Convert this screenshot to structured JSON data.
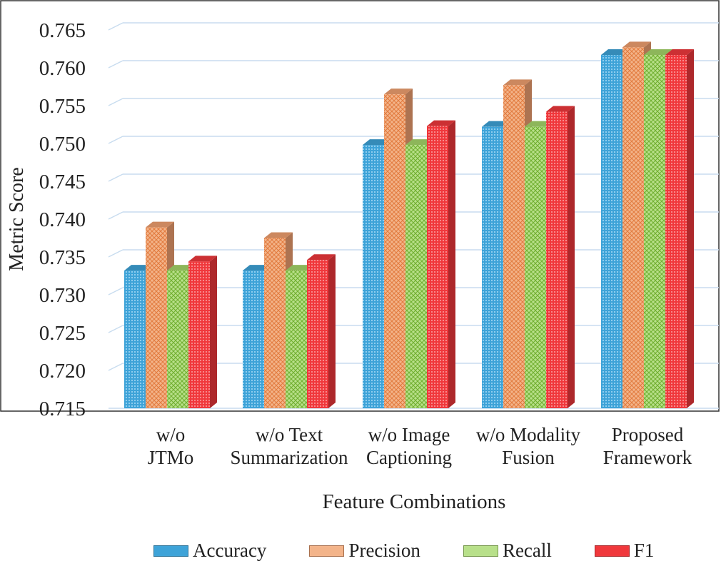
{
  "chart_data": {
    "type": "bar",
    "title": "",
    "xlabel": "Feature Combinations",
    "ylabel": "Metric Score",
    "ylim": [
      0.715,
      0.765
    ],
    "yticks": [
      "0.715",
      "0.720",
      "0.725",
      "0.730",
      "0.735",
      "0.740",
      "0.745",
      "0.750",
      "0.755",
      "0.760",
      "0.765"
    ],
    "grid": true,
    "legend_position": "bottom",
    "categories": [
      [
        "w/o",
        "JTMo"
      ],
      [
        "w/o Text",
        "Summarization"
      ],
      [
        "w/o Image",
        "Captioning"
      ],
      [
        "w/o Modality",
        "Fusion"
      ],
      [
        "Proposed",
        "Framework"
      ]
    ],
    "series": [
      {
        "name": "Accuracy",
        "color": "#3ea3d8",
        "values": [
          0.7332,
          0.7332,
          0.7498,
          0.7522,
          0.7617
        ]
      },
      {
        "name": "Precision",
        "color": "#f0a070",
        "values": [
          0.7389,
          0.7375,
          0.7565,
          0.7577,
          0.7627
        ]
      },
      {
        "name": "Recall",
        "color": "#a6d66a",
        "values": [
          0.7332,
          0.7332,
          0.7498,
          0.7522,
          0.7617
        ]
      },
      {
        "name": "F1",
        "color": "#f0383c",
        "values": [
          0.7344,
          0.7346,
          0.7523,
          0.7542,
          0.7617
        ]
      }
    ]
  }
}
